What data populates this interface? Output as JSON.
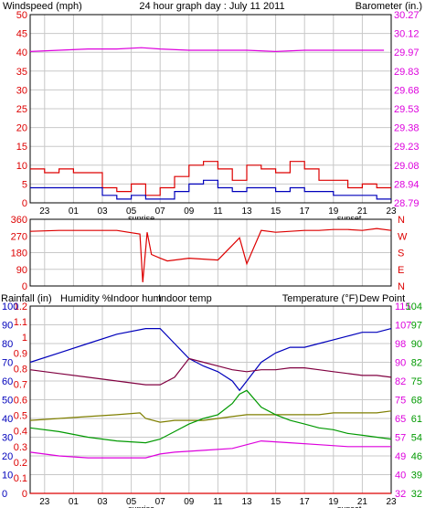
{
  "colors": {
    "red": "#dd0000",
    "blue": "#0000bb",
    "magenta": "#dd00dd",
    "olive": "#7f7f00",
    "green": "#009900",
    "maroon": "#800040",
    "grid": "#c8c8c8"
  },
  "chart_data": [
    {
      "type": "line",
      "title": "24 hour graph day : July 11 2011",
      "left_axis_label": "Windspeed (mph)",
      "right_axis_label": "Barometer (in.)",
      "left_ticks": [
        "50",
        "45",
        "40",
        "35",
        "30",
        "25",
        "20",
        "15",
        "10",
        "5",
        "0"
      ],
      "right_ticks": [
        "30.27",
        "30.12",
        "29.97",
        "29.83",
        "29.68",
        "29.53",
        "29.38",
        "29.23",
        "29.08",
        "28.94",
        "28.79"
      ],
      "x_labels": [
        "23",
        "01",
        "03",
        "05",
        "07",
        "09",
        "11",
        "13",
        "15",
        "17",
        "19",
        "21",
        "23"
      ],
      "sunrise_label": "sunrise",
      "sunset_label": "sunset",
      "x_range": [
        22,
        47
      ],
      "sunrise_hour": 29.7,
      "sunset_hour": 44.1,
      "left_range": [
        0,
        50
      ],
      "right_range": [
        28.79,
        30.27
      ],
      "series": [
        {
          "key": "barometer",
          "axis": "right",
          "color": "magenta",
          "x": [
            22,
            24,
            26,
            28,
            29.7,
            31,
            33,
            35,
            37,
            39,
            41,
            43,
            45,
            46.5
          ],
          "y": [
            29.98,
            29.99,
            30.0,
            30.0,
            30.01,
            30.0,
            29.99,
            29.99,
            29.99,
            29.98,
            29.99,
            29.99,
            29.99,
            29.99
          ]
        },
        {
          "key": "wind_gust",
          "axis": "left",
          "color": "red",
          "x": [
            22,
            23,
            24,
            25,
            26,
            27,
            28,
            29,
            30,
            31,
            32,
            33,
            34,
            35,
            36,
            37,
            38,
            39,
            40,
            41,
            42,
            43,
            44,
            45,
            46,
            47
          ],
          "y": [
            9,
            8,
            9,
            8,
            8,
            4,
            3,
            5,
            2,
            4,
            7,
            10,
            11,
            9,
            6,
            10,
            9,
            8,
            11,
            9,
            6,
            6,
            4,
            5,
            4,
            4
          ]
        },
        {
          "key": "wind_avg",
          "axis": "left",
          "color": "blue",
          "x": [
            22,
            23,
            24,
            25,
            26,
            27,
            28,
            29,
            30,
            31,
            32,
            33,
            34,
            35,
            36,
            37,
            38,
            39,
            40,
            41,
            42,
            43,
            44,
            45,
            46,
            47
          ],
          "y": [
            4,
            4,
            4,
            4,
            4,
            2,
            1,
            2,
            1,
            1,
            3,
            5,
            6,
            4,
            3,
            4,
            4,
            3,
            4,
            3,
            3,
            2,
            2,
            2,
            1,
            1
          ]
        }
      ]
    },
    {
      "type": "line",
      "title": "",
      "left_ticks": [
        "360",
        "270",
        "180",
        "90",
        "0"
      ],
      "right_ticks": [
        "N",
        "W",
        "S",
        "E",
        "N"
      ],
      "y_range": [
        0,
        360
      ],
      "x_range": [
        22,
        47
      ],
      "series": [
        {
          "key": "wind_direction",
          "color": "red",
          "x": [
            22,
            24,
            26,
            28,
            29.6,
            29.8,
            30.1,
            30.4,
            31,
            31.5,
            33,
            35,
            36.5,
            37,
            38,
            39,
            40,
            41,
            42,
            43,
            44,
            45,
            46,
            47
          ],
          "y": [
            295,
            300,
            300,
            300,
            280,
            20,
            290,
            170,
            150,
            135,
            150,
            140,
            260,
            120,
            300,
            290,
            295,
            300,
            300,
            305,
            305,
            300,
            310,
            300
          ]
        }
      ]
    },
    {
      "type": "line",
      "title": "",
      "legend": [
        {
          "text": "Rainfall (in)",
          "color": "red"
        },
        {
          "text": "Humidity %",
          "color": "blue"
        },
        {
          "text": "Indoor hum",
          "color": "olive"
        },
        {
          "text": "Indoor temp",
          "color": "maroon"
        },
        {
          "text": "Temperature (°F)",
          "color": "green"
        },
        {
          "text": "Dew Point",
          "color": "magenta"
        }
      ],
      "rain_ticks": [
        "1.2",
        "1.1",
        "1",
        "0.9",
        "0.8",
        "0.7",
        "0.6",
        "0.5",
        "0.4",
        "0.3",
        "0.2",
        "0.1",
        "0"
      ],
      "humidity_ticks": [
        "100",
        "90",
        "80",
        "70",
        "60",
        "50",
        "40",
        "30",
        "20",
        "10",
        "0"
      ],
      "right_ticks_1": [
        "115",
        "107",
        "98",
        "90",
        "82",
        "75",
        "65",
        "57",
        "49",
        "40",
        "32"
      ],
      "right_ticks_2": [
        "104",
        "97",
        "90",
        "82",
        "75",
        "68",
        "61",
        "54",
        "46",
        "39",
        "32"
      ],
      "x_labels": [
        "23",
        "01",
        "03",
        "05",
        "07",
        "09",
        "11",
        "13",
        "15",
        "17",
        "19",
        "21",
        "23"
      ],
      "sunrise_label": "sunrise",
      "sunset_label": "sunset",
      "x_range": [
        22,
        47
      ],
      "y_range_pct": [
        0,
        100
      ],
      "series": [
        {
          "key": "humidity",
          "color": "blue",
          "x": [
            22,
            24,
            26,
            28,
            30,
            31,
            32,
            33,
            34,
            35,
            36,
            36.5,
            37,
            38,
            39,
            40,
            41,
            42,
            43,
            44,
            45,
            46,
            47
          ],
          "y": [
            70,
            75,
            80,
            85,
            88,
            88,
            80,
            72,
            68,
            65,
            60,
            55,
            60,
            70,
            75,
            78,
            78,
            80,
            82,
            84,
            86,
            86,
            88
          ]
        },
        {
          "key": "indoor_temp",
          "color": "maroon",
          "x": [
            22,
            24,
            26,
            28,
            30,
            31,
            32,
            33,
            34,
            35,
            36,
            37,
            38,
            39,
            40,
            41,
            42,
            43,
            44,
            45,
            46,
            47
          ],
          "y": [
            66,
            64,
            62,
            60,
            58,
            58,
            62,
            72,
            70,
            68,
            66,
            65,
            66,
            66,
            67,
            67,
            66,
            65,
            64,
            63,
            63,
            62
          ]
        },
        {
          "key": "indoor_hum",
          "color": "olive",
          "x": [
            22,
            24,
            26,
            28,
            29.6,
            30,
            31,
            32,
            33,
            34,
            35,
            36,
            37,
            38,
            39,
            40,
            41,
            42,
            43,
            44,
            45,
            46,
            47
          ],
          "y": [
            39,
            40,
            41,
            42,
            43,
            40,
            38,
            39,
            39,
            39,
            40,
            41,
            42,
            42,
            42,
            42,
            42,
            42,
            43,
            43,
            43,
            43,
            44
          ]
        },
        {
          "key": "temperature",
          "color": "green",
          "x": [
            22,
            24,
            26,
            28,
            30,
            31,
            32,
            33,
            34,
            35,
            36,
            36.5,
            37,
            38,
            39,
            40,
            41,
            42,
            43,
            44,
            45,
            46,
            47
          ],
          "y": [
            35,
            33,
            30,
            28,
            27,
            29,
            33,
            37,
            40,
            42,
            48,
            53,
            55,
            46,
            42,
            39,
            37,
            35,
            34,
            32,
            31,
            30,
            29
          ]
        },
        {
          "key": "dew_point",
          "color": "magenta",
          "x": [
            22,
            24,
            26,
            28,
            30,
            31,
            32,
            34,
            36,
            38,
            40,
            42,
            44,
            46,
            47
          ],
          "y": [
            22,
            20,
            19,
            19,
            19,
            21,
            22,
            23,
            24,
            28,
            27,
            26,
            25,
            25,
            25
          ]
        },
        {
          "key": "rainfall",
          "color": "red",
          "x": [
            22,
            47
          ],
          "y": [
            0,
            0
          ]
        }
      ]
    }
  ]
}
